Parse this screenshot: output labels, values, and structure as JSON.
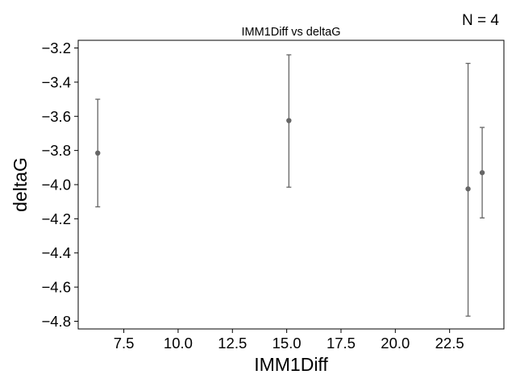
{
  "chart_data": {
    "type": "scatter",
    "title": "IMM1Diff vs deltaG",
    "xlabel": "IMM1Diff",
    "ylabel": "deltaG",
    "annotation": "N = 4",
    "xlim": [
      5.4,
      25.0
    ],
    "ylim": [
      -4.845,
      -3.155
    ],
    "xticks": [
      7.5,
      10.0,
      12.5,
      15.0,
      17.5,
      20.0,
      22.5
    ],
    "xtick_labels": [
      "7.5",
      "10.0",
      "12.5",
      "15.0",
      "17.5",
      "20.0",
      "22.5"
    ],
    "yticks": [
      -3.2,
      -3.4,
      -3.6,
      -3.8,
      -4.0,
      -4.2,
      -4.4,
      -4.6,
      -4.8
    ],
    "ytick_labels": [
      "−3.2",
      "−3.4",
      "−3.6",
      "−3.8",
      "−4.0",
      "−4.2",
      "−4.4",
      "−4.6",
      "−4.8"
    ],
    "grid": false,
    "marker_color": "#666666",
    "points": [
      {
        "x": 6.3,
        "y": -3.815,
        "err_low": -4.13,
        "err_high": -3.5
      },
      {
        "x": 15.1,
        "y": -3.625,
        "err_low": -4.015,
        "err_high": -3.24
      },
      {
        "x": 23.35,
        "y": -4.025,
        "err_low": -4.77,
        "err_high": -3.29
      },
      {
        "x": 24.0,
        "y": -3.93,
        "err_low": -4.195,
        "err_high": -3.665
      }
    ]
  }
}
